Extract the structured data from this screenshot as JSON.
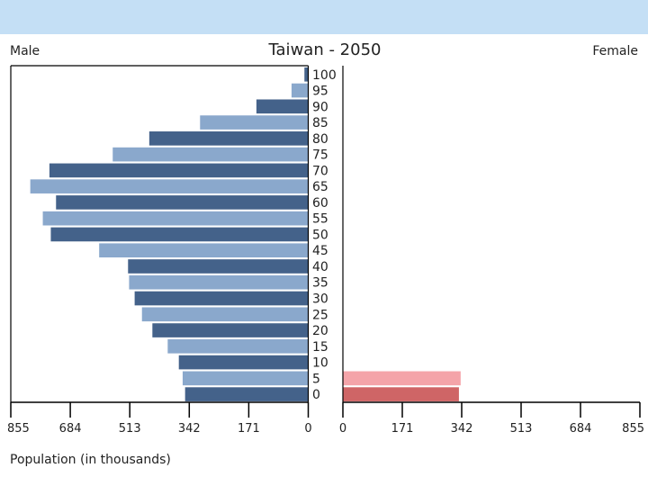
{
  "chart_data": {
    "type": "bar",
    "title": "Taiwan - 2050",
    "left_label": "Male",
    "right_label": "Female",
    "xlabel": "Population (in thousands)",
    "xlim": [
      0,
      855
    ],
    "xticks": [
      "855",
      "684",
      "513",
      "342",
      "171",
      "0"
    ],
    "xticks_right": [
      "0",
      "171",
      "342",
      "513",
      "684",
      "855"
    ],
    "categories": [
      "100",
      "95",
      "90",
      "85",
      "80",
      "75",
      "70",
      "65",
      "60",
      "55",
      "50",
      "45",
      "40",
      "35",
      "30",
      "25",
      "20",
      "15",
      "10",
      "5",
      "0"
    ],
    "series": [
      {
        "name": "Male",
        "values": [
          11,
          48,
          149,
          311,
          457,
          562,
          744,
          799,
          725,
          763,
          740,
          601,
          518,
          515,
          499,
          478,
          448,
          404,
          372,
          361,
          354
        ]
      },
      {
        "name": "Female",
        "values": [
          0,
          0,
          0,
          0,
          0,
          0,
          0,
          0,
          0,
          0,
          0,
          0,
          0,
          0,
          0,
          0,
          0,
          0,
          0,
          339,
          334
        ]
      }
    ],
    "colors": {
      "male_dark": "#44628a",
      "male_light": "#8aa8cc",
      "female_dark": "#cf6566",
      "female_light": "#f4a4a9"
    },
    "grid": false
  }
}
